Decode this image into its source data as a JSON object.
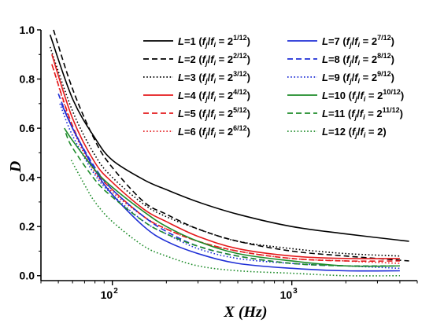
{
  "chart_data": {
    "type": "line",
    "xlabel": "X (Hz)",
    "ylabel": "D",
    "xscale": "log",
    "xlim": [
      40,
      5000
    ],
    "ylim": [
      -0.02,
      1.0
    ],
    "xticks": [
      {
        "value": 100,
        "base": "10",
        "exp": "2"
      },
      {
        "value": 1000,
        "base": "10",
        "exp": "3"
      }
    ],
    "yticks": [
      {
        "value": 0.0,
        "label": "0.0"
      },
      {
        "value": 0.2,
        "label": "0.2"
      },
      {
        "value": 0.4,
        "label": "0.4"
      },
      {
        "value": 0.6,
        "label": "0.6"
      },
      {
        "value": 0.8,
        "label": "0.8"
      },
      {
        "value": 1.0,
        "label": "1.0"
      }
    ],
    "legend_position": "top-right",
    "series": [
      {
        "name": "L=1",
        "ratio": "2",
        "ratio_exp": "1/12",
        "color": "#000000",
        "dash": "solid",
        "x": [
          45,
          60,
          80,
          100,
          150,
          200,
          300,
          500,
          1000,
          2000,
          4500
        ],
        "y": [
          0.98,
          0.72,
          0.56,
          0.47,
          0.39,
          0.35,
          0.3,
          0.25,
          0.2,
          0.17,
          0.14
        ]
      },
      {
        "name": "L=2",
        "ratio": "2",
        "ratio_exp": "2/12",
        "color": "#000000",
        "dash": "dash",
        "x": [
          47,
          60,
          80,
          100,
          150,
          200,
          300,
          500,
          1000,
          2000,
          4500
        ],
        "y": [
          1.0,
          0.76,
          0.55,
          0.44,
          0.3,
          0.25,
          0.19,
          0.14,
          0.1,
          0.08,
          0.06
        ]
      },
      {
        "name": "L=3",
        "ratio": "2",
        "ratio_exp": "3/12",
        "color": "#000000",
        "dash": "dot",
        "x": [
          45,
          60,
          80,
          100,
          150,
          200,
          300,
          500,
          1000,
          2000,
          4000
        ],
        "y": [
          0.93,
          0.67,
          0.49,
          0.4,
          0.29,
          0.24,
          0.19,
          0.14,
          0.11,
          0.09,
          0.08
        ]
      },
      {
        "name": "L=4",
        "ratio": "2",
        "ratio_exp": "4/12",
        "color": "#e41a1c",
        "dash": "solid",
        "x": [
          46,
          60,
          80,
          100,
          150,
          200,
          300,
          500,
          1000,
          2000,
          4000
        ],
        "y": [
          0.9,
          0.64,
          0.46,
          0.38,
          0.27,
          0.22,
          0.16,
          0.11,
          0.08,
          0.07,
          0.07
        ]
      },
      {
        "name": "L=5",
        "ratio": "2",
        "ratio_exp": "5/12",
        "color": "#e41a1c",
        "dash": "dash",
        "x": [
          46,
          60,
          80,
          100,
          150,
          200,
          300,
          500,
          1000,
          2000,
          4000
        ],
        "y": [
          0.86,
          0.61,
          0.43,
          0.35,
          0.24,
          0.19,
          0.14,
          0.1,
          0.07,
          0.06,
          0.06
        ]
      },
      {
        "name": "L=6",
        "ratio": "2",
        "ratio_exp": "6/12",
        "color": "#e41a1c",
        "dash": "dot",
        "x": [
          47,
          60,
          80,
          100,
          150,
          200,
          300,
          500,
          1000,
          2000,
          4000
        ],
        "y": [
          0.84,
          0.6,
          0.42,
          0.34,
          0.24,
          0.19,
          0.14,
          0.1,
          0.07,
          0.06,
          0.05
        ]
      },
      {
        "name": "L=7",
        "ratio": "2",
        "ratio_exp": "7/12",
        "color": "#1f2fd6",
        "dash": "solid",
        "x": [
          52,
          60,
          80,
          100,
          150,
          200,
          300,
          500,
          1000,
          2000,
          4000
        ],
        "y": [
          0.7,
          0.6,
          0.43,
          0.33,
          0.2,
          0.14,
          0.09,
          0.05,
          0.03,
          0.02,
          0.02
        ]
      },
      {
        "name": "L=8",
        "ratio": "2",
        "ratio_exp": "8/12",
        "color": "#1f2fd6",
        "dash": "dash",
        "x": [
          50,
          60,
          80,
          100,
          150,
          200,
          300,
          500,
          1000,
          2000,
          4000
        ],
        "y": [
          0.74,
          0.6,
          0.44,
          0.35,
          0.24,
          0.18,
          0.12,
          0.08,
          0.05,
          0.04,
          0.04
        ]
      },
      {
        "name": "L=9",
        "ratio": "2",
        "ratio_exp": "9/12",
        "color": "#1f2fd6",
        "dash": "dot",
        "x": [
          51,
          60,
          80,
          100,
          150,
          200,
          300,
          500,
          1000,
          2000,
          4000
        ],
        "y": [
          0.7,
          0.57,
          0.41,
          0.33,
          0.22,
          0.17,
          0.11,
          0.07,
          0.05,
          0.04,
          0.03
        ]
      },
      {
        "name": "L=10",
        "ratio": "2",
        "ratio_exp": "10/12",
        "color": "#1e8c2a",
        "dash": "solid",
        "x": [
          54,
          60,
          80,
          100,
          150,
          200,
          300,
          500,
          1000,
          2000,
          4000
        ],
        "y": [
          0.6,
          0.55,
          0.43,
          0.36,
          0.26,
          0.2,
          0.14,
          0.09,
          0.06,
          0.04,
          0.04
        ]
      },
      {
        "name": "L=11",
        "ratio": "2",
        "ratio_exp": "11/12",
        "color": "#1e8c2a",
        "dash": "dash",
        "x": [
          55,
          60,
          80,
          100,
          150,
          200,
          300,
          500,
          1000,
          2000,
          4000
        ],
        "y": [
          0.58,
          0.52,
          0.39,
          0.32,
          0.22,
          0.17,
          0.12,
          0.08,
          0.05,
          0.04,
          0.04
        ]
      },
      {
        "name": "L=12",
        "ratio": "2",
        "ratio_exp": "",
        "color": "#1e8c2a",
        "dash": "dot",
        "x": [
          59,
          70,
          80,
          100,
          150,
          200,
          300,
          500,
          1000,
          2000,
          4000
        ],
        "y": [
          0.47,
          0.37,
          0.3,
          0.22,
          0.12,
          0.08,
          0.04,
          0.02,
          0.01,
          0.0,
          0.0
        ]
      }
    ]
  }
}
